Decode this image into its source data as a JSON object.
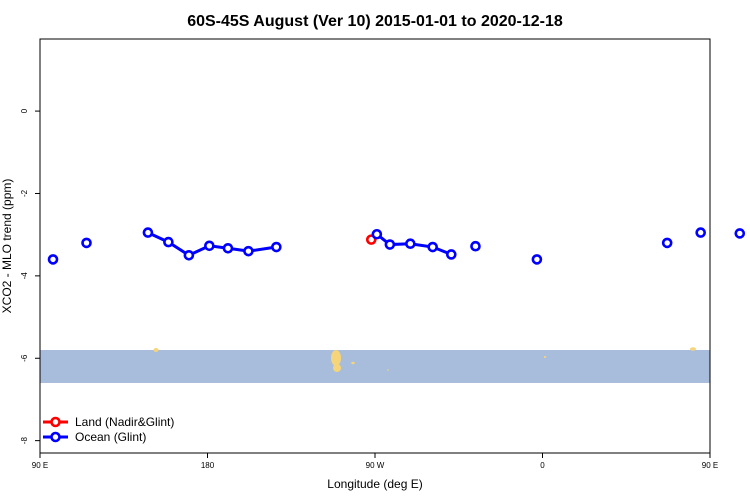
{
  "chart_data": {
    "type": "scatter",
    "title": "60S-45S August (Ver 10)   2015-01-01 to 2020-12-18",
    "xlabel": "Longitude (deg E)",
    "ylabel": "XCO2 - MLO trend (ppm)",
    "xlim": [
      90,
      450
    ],
    "ylim": [
      -8.3,
      1.75
    ],
    "x_tick_positions": [
      90,
      180,
      270,
      360,
      450
    ],
    "x_tick_labels": [
      "90 E",
      "180",
      "90 W",
      "0",
      "90 E",
      "180"
    ],
    "x_tick_values": [
      90,
      180,
      270,
      360,
      450,
      540
    ],
    "y_ticks": [
      0,
      -2,
      -4,
      -6,
      -8
    ],
    "y_tick_labels": [
      "0",
      "-2",
      "-4",
      "-6",
      "-8"
    ],
    "grid": false,
    "legend_position": "bottom-left",
    "map_band": {
      "y_range": [
        -6.6,
        -5.8
      ],
      "ocean_color": "#a8bcdc",
      "land_color": "#f5d47a"
    },
    "series": [
      {
        "name": "Land (Nadir&Glint)",
        "color": "#ff0000",
        "x": [
          268
        ],
        "y": [
          -3.12
        ],
        "segments": [
          [
            0
          ]
        ]
      },
      {
        "name": "Ocean (Glint)",
        "color": "#0000ff",
        "x": [
          97,
          115,
          148,
          159,
          170,
          181,
          191,
          202,
          217,
          271,
          278,
          289,
          301,
          311,
          324,
          357,
          427,
          445,
          466
        ],
        "y": [
          -3.6,
          -3.2,
          -2.95,
          -3.18,
          -3.5,
          -3.27,
          -3.33,
          -3.4,
          -3.3,
          -2.99,
          -3.24,
          -3.22,
          -3.3,
          -3.48,
          -3.28,
          -3.6,
          -3.2,
          -2.95,
          -2.97
        ],
        "segments": [
          [
            0
          ],
          [
            1
          ],
          [
            2,
            3,
            4,
            5,
            6,
            7,
            8
          ],
          [
            9,
            10,
            11,
            12,
            13
          ],
          [
            14
          ],
          [
            15
          ],
          [
            16
          ],
          [
            17
          ],
          [
            18
          ]
        ]
      }
    ]
  }
}
